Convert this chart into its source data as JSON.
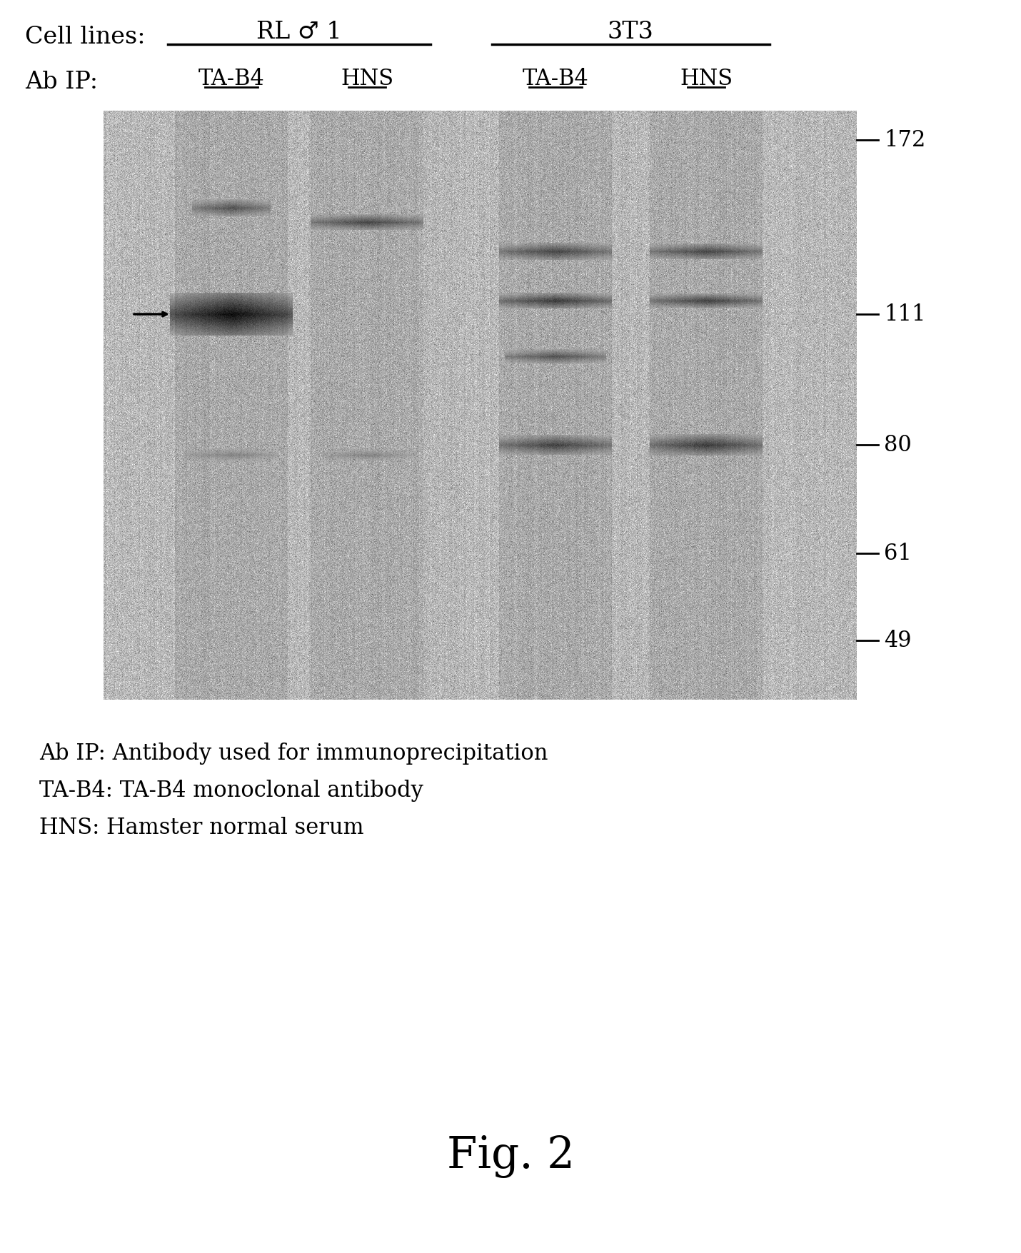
{
  "title": "Fig. 2",
  "cell_lines_label": "Cell lines:",
  "cell_line_1": "RL ♂ 1",
  "cell_line_2": "3T3",
  "ab_ip_label": "Ab IP:",
  "lane_labels": [
    "TA-B4",
    "HNS",
    "TA-B4",
    "HNS"
  ],
  "mw_markers": [
    172,
    111,
    80,
    61,
    49
  ],
  "legend_lines": [
    "Ab IP: Antibody used for immunoprecipitation",
    "TA-B4: TA-B4 monoclonal antibody",
    "HNS: Hamster normal serum"
  ],
  "bg_color": "#d8d0c8",
  "gel_bg": "#c8c0b8",
  "white": "#ffffff",
  "black": "#000000"
}
